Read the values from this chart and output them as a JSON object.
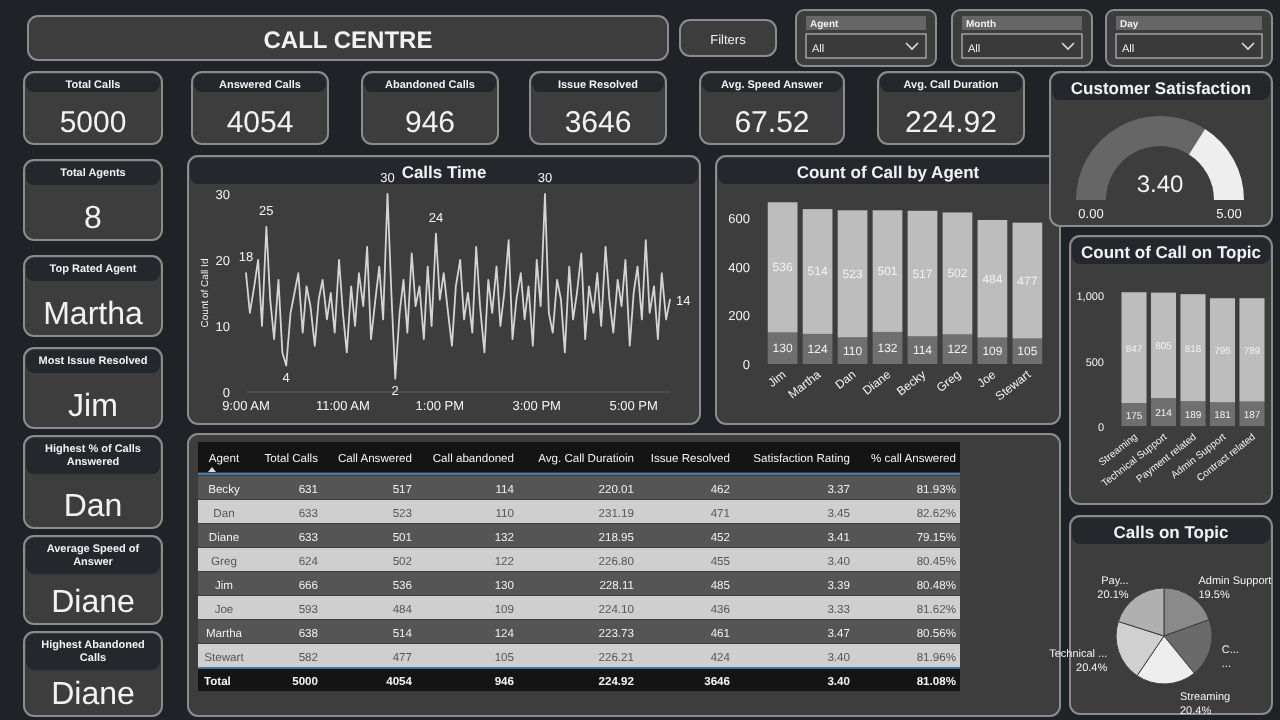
{
  "chart_data": [
    {
      "type": "other",
      "title": "CALL CENTRE",
      "annotations": [
        "Filters",
        "Agent",
        "All",
        "Month",
        "All",
        "Day",
        "All",
        "Total Calls",
        "5000",
        "Answered Calls",
        "4054",
        "Abandoned Calls",
        "946",
        "Issue Resolved",
        "3646",
        "Avg. Speed Answer",
        "67.52",
        "Avg. Call Duration",
        "224.92",
        "Total Agents",
        "8",
        "Top Rated Agent",
        "Martha",
        "Most Issue Resolved",
        "Jim",
        "Highest % of Calls Answered",
        "Dan",
        "Average Speed of Answer",
        "Diane",
        "Highest Abandoned Calls",
        "Diane"
      ]
    },
    {
      "type": "line",
      "title": "Calls Time",
      "ylabel": "Count of Call Id",
      "xlim": [
        9,
        17.75
      ],
      "ylim": [
        0,
        30
      ],
      "yticks": [
        0,
        10,
        20,
        30
      ],
      "xticks": [
        {
          "value": 9,
          "label": "9:00 AM"
        },
        {
          "value": 11,
          "label": "11:00 AM"
        },
        {
          "value": 13,
          "label": "1:00 PM"
        },
        {
          "value": 15,
          "label": "3:00 PM"
        },
        {
          "value": 17,
          "label": "5:00 PM"
        }
      ],
      "series": [
        {
          "color": "#d4d4d4",
          "x": [
            9,
            9.08,
            9.17,
            9.25,
            9.33,
            9.42,
            9.5,
            9.58,
            9.67,
            9.75,
            9.83,
            9.92,
            10,
            10.08,
            10.17,
            10.25,
            10.33,
            10.42,
            10.5,
            10.58,
            10.67,
            10.75,
            10.83,
            10.92,
            11,
            11.08,
            11.17,
            11.25,
            11.33,
            11.42,
            11.5,
            11.58,
            11.67,
            11.75,
            11.83,
            11.92,
            12,
            12.08,
            12.17,
            12.25,
            12.33,
            12.42,
            12.5,
            12.58,
            12.67,
            12.75,
            12.83,
            12.92,
            13,
            13.08,
            13.17,
            13.25,
            13.33,
            13.42,
            13.5,
            13.58,
            13.67,
            13.75,
            13.83,
            13.92,
            14,
            14.08,
            14.17,
            14.25,
            14.33,
            14.42,
            14.5,
            14.58,
            14.67,
            14.75,
            14.83,
            14.92,
            15,
            15.08,
            15.17,
            15.25,
            15.33,
            15.42,
            15.5,
            15.58,
            15.67,
            15.75,
            15.83,
            15.92,
            16,
            16.08,
            16.17,
            16.25,
            16.33,
            16.42,
            16.5,
            16.58,
            16.67,
            16.75,
            16.83,
            16.92,
            17,
            17.08,
            17.17,
            17.25,
            17.33,
            17.42,
            17.5,
            17.58,
            17.67,
            17.75
          ],
          "values": [
            18,
            12,
            16,
            20,
            10,
            25,
            14,
            8,
            17,
            6,
            4,
            12,
            15,
            18,
            9,
            16,
            13,
            7,
            14,
            17,
            11,
            15,
            9,
            20,
            12,
            6,
            16,
            10,
            18,
            13,
            22,
            8,
            14,
            19,
            11,
            30,
            15,
            2,
            12,
            17,
            9,
            21,
            13,
            16,
            8,
            19,
            10,
            24,
            14,
            18,
            12,
            7,
            16,
            20,
            11,
            15,
            9,
            22,
            13,
            6,
            17,
            12,
            19,
            10,
            15,
            23,
            8,
            14,
            18,
            11,
            16,
            7,
            20,
            13,
            30,
            12,
            9,
            17,
            14,
            6,
            19,
            11,
            15,
            21,
            8,
            16,
            12,
            18,
            10,
            22,
            14,
            9,
            17,
            13,
            20,
            7,
            15,
            19,
            11,
            23,
            12,
            16,
            8,
            18,
            11,
            14
          ]
        }
      ],
      "annotations": [
        {
          "text": "18",
          "x": 9,
          "y": 18
        },
        {
          "text": "25",
          "x": 9.42,
          "y": 25
        },
        {
          "text": "4",
          "x": 9.83,
          "y": 4
        },
        {
          "text": "30",
          "x": 11.92,
          "y": 30
        },
        {
          "text": "2",
          "x": 12.08,
          "y": 2
        },
        {
          "text": "24",
          "x": 12.92,
          "y": 24
        },
        {
          "text": "30",
          "x": 15.17,
          "y": 30
        },
        {
          "text": "14",
          "x": 17.75,
          "y": 14
        }
      ]
    },
    {
      "type": "bar",
      "title": "Count of Call by Agent",
      "stacked": true,
      "data_labels": true,
      "categories": [
        "Jim",
        "Martha",
        "Dan",
        "Diane",
        "Becky",
        "Greg",
        "Joe",
        "Stewart"
      ],
      "ylim": [
        0,
        700
      ],
      "yticks": [
        0,
        200,
        400,
        600
      ],
      "series": [
        {
          "color": "#6f6f6f",
          "values": [
            130,
            124,
            110,
            132,
            114,
            122,
            109,
            105
          ]
        },
        {
          "color": "#bdbdbd",
          "values": [
            536,
            514,
            523,
            501,
            517,
            502,
            484,
            477
          ]
        }
      ]
    },
    {
      "type": "donut",
      "title": "Customer Satisfaction",
      "categories": [
        null,
        null
      ],
      "values": [
        3.4,
        1.6
      ],
      "value_labels": [
        "3.40",
        null
      ],
      "colors": [
        "#666666",
        "#eeeeee"
      ],
      "annotations": [
        "0.00",
        "5.00"
      ]
    },
    {
      "type": "bar",
      "title": "Count of Call on Topic",
      "stacked": true,
      "data_labels": true,
      "categories": [
        "Streaming",
        "Technical Support",
        "Payment related",
        "Admin Support",
        "Contract related"
      ],
      "ylim": [
        0,
        1100
      ],
      "yticks": [
        0,
        500,
        {
          "value": 1000,
          "label": "1,000"
        }
      ],
      "series": [
        {
          "color": "#6f6f6f",
          "values": [
            175,
            214,
            189,
            181,
            187
          ]
        },
        {
          "color": "#bdbdbd",
          "values": [
            847,
            805,
            818,
            795,
            789
          ]
        }
      ]
    },
    {
      "type": "other",
      "categories": [
        "Agent",
        "Total Calls",
        "Call Answered",
        "Call abandoned",
        "Avg. Call Duratioin",
        "Issue Resolved",
        "Satisfaction Rating",
        "% call Answered"
      ],
      "cell_labels": [
        [
          "Becky",
          "631",
          "517",
          "114",
          "220.01",
          "462",
          "3.37",
          "81.93%"
        ],
        [
          "Dan",
          "633",
          "523",
          "110",
          "231.19",
          "471",
          "3.45",
          "82.62%"
        ],
        [
          "Diane",
          "633",
          "501",
          "132",
          "218.95",
          "452",
          "3.41",
          "79.15%"
        ],
        [
          "Greg",
          "624",
          "502",
          "122",
          "226.80",
          "455",
          "3.40",
          "80.45%"
        ],
        [
          "Jim",
          "666",
          "536",
          "130",
          "228.11",
          "485",
          "3.39",
          "80.48%"
        ],
        [
          "Joe",
          "593",
          "484",
          "109",
          "224.10",
          "436",
          "3.33",
          "81.62%"
        ],
        [
          "Martha",
          "638",
          "514",
          "124",
          "223.73",
          "461",
          "3.47",
          "80.56%"
        ],
        [
          "Stewart",
          "582",
          "477",
          "105",
          "226.21",
          "424",
          "3.40",
          "81.96%"
        ],
        [
          "Total",
          "5000",
          "4054",
          "946",
          "224.92",
          "3646",
          "3.40",
          "81.08%"
        ]
      ]
    },
    {
      "type": "pie",
      "title": "Calls on Topic",
      "categories": [
        "Admin Support",
        "C...",
        "Streaming",
        "Technical ...",
        "Pay..."
      ],
      "values": [
        19.5,
        19.6,
        20.4,
        20.4,
        20.1
      ],
      "value_labels": [
        "19.5%",
        "...",
        "20.4%",
        "20.4%",
        "20.1%"
      ],
      "colors": [
        "#8a8a8a",
        "#6a6a6a",
        "#eeeeee",
        "#d0d0d0",
        "#b0b0b0"
      ]
    }
  ]
}
